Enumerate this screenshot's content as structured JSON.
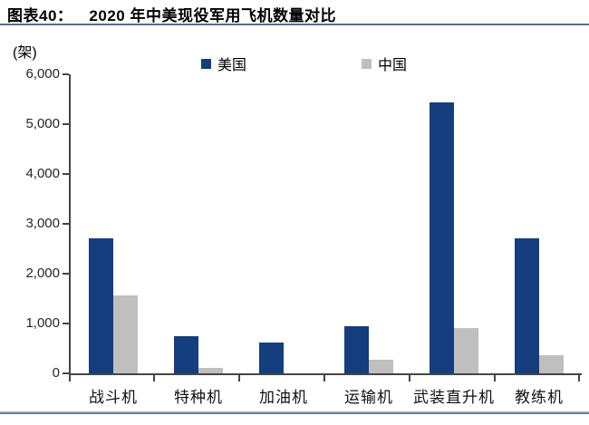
{
  "header": {
    "label": "图表40：",
    "title": "2020 年中美现役军用飞机数量对比"
  },
  "chart_data": {
    "type": "bar",
    "title": "2020 年中美现役军用飞机数量对比",
    "unit_label": "(架)",
    "categories": [
      "战斗机",
      "特种机",
      "加油机",
      "运输机",
      "武装直升机",
      "教练机"
    ],
    "series": [
      {
        "name": "美国",
        "color": "#143e7d",
        "values": [
          2717,
          745,
          625,
          945,
          5429,
          2712
        ]
      },
      {
        "name": "中国",
        "color": "#bfbfbf",
        "values": [
          1571,
          111,
          3,
          264,
          902,
          368
        ]
      }
    ],
    "xlabel": "",
    "ylabel": "(架)",
    "ylim": [
      0,
      6000
    ],
    "ytick_labels": [
      "0",
      "1,000",
      "2,000",
      "3,000",
      "4,000",
      "5,000",
      "6,000"
    ],
    "legend_position": "top",
    "grid": false
  },
  "colors": {
    "title_rule": "#4f6fa1",
    "bottom_rule": "#46697e",
    "axis": "#454545"
  }
}
